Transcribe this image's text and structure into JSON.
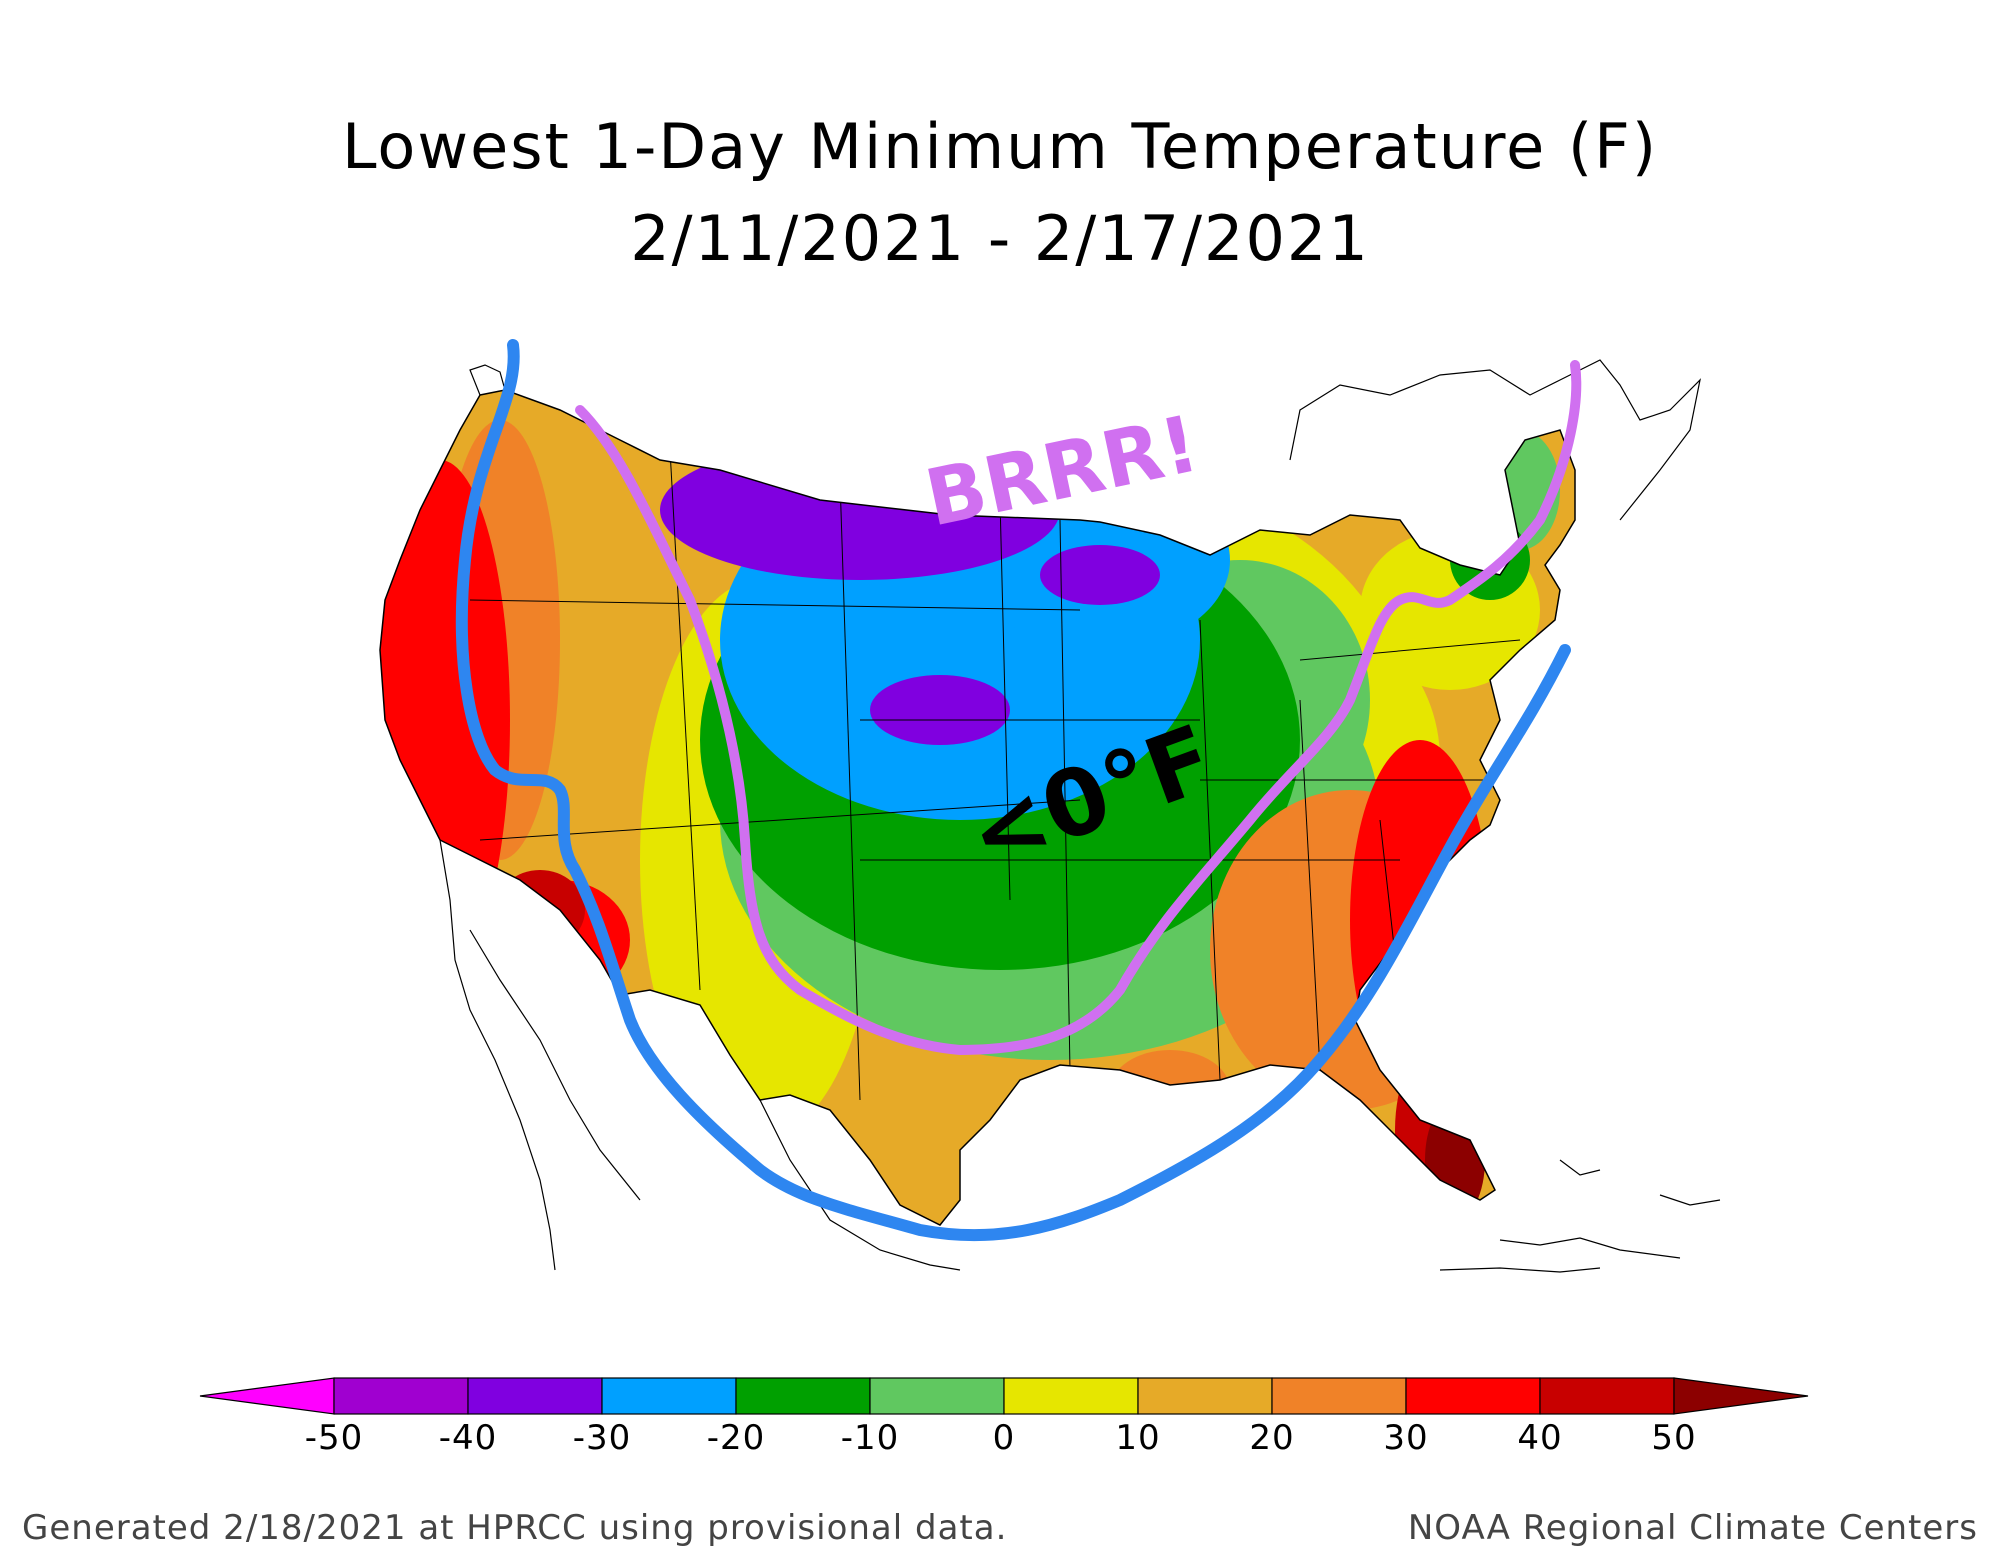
{
  "title": "Lowest 1-Day Minimum Temperature (F)",
  "subtitle": "2/11/2021 - 2/17/2021",
  "annotations": {
    "exclaim": "BRRR!",
    "cold_label": "<0°F"
  },
  "legend": {
    "ticks": [
      "-50",
      "-40",
      "-30",
      "-20",
      "-10",
      "0",
      "10",
      "20",
      "30",
      "40",
      "50"
    ],
    "bins": [
      {
        "range": "<-50",
        "color": "#ff00ff"
      },
      {
        "range": "-50 to -40",
        "color": "#a000d0"
      },
      {
        "range": "-40 to -30",
        "color": "#8000e0"
      },
      {
        "range": "-30 to -20",
        "color": "#00a0ff"
      },
      {
        "range": "-20 to -10",
        "color": "#00a000"
      },
      {
        "range": "-10 to 0",
        "color": "#60c860"
      },
      {
        "range": "0 to 10",
        "color": "#e6e600"
      },
      {
        "range": "10 to 20",
        "color": "#e6aa28"
      },
      {
        "range": "20 to 30",
        "color": "#f08228"
      },
      {
        "range": "30 to 40",
        "color": "#ff0000"
      },
      {
        "range": "40 to 50",
        "color": "#c80000"
      },
      {
        "range": ">50",
        "color": "#8c0000"
      }
    ]
  },
  "footer": {
    "left": "Generated 2/18/2021 at HPRCC using provisional data.",
    "right": "NOAA Regional Climate Centers"
  },
  "colors": {
    "annotation_pink": "#d070f0",
    "annotation_blue": "#2e86f0"
  }
}
